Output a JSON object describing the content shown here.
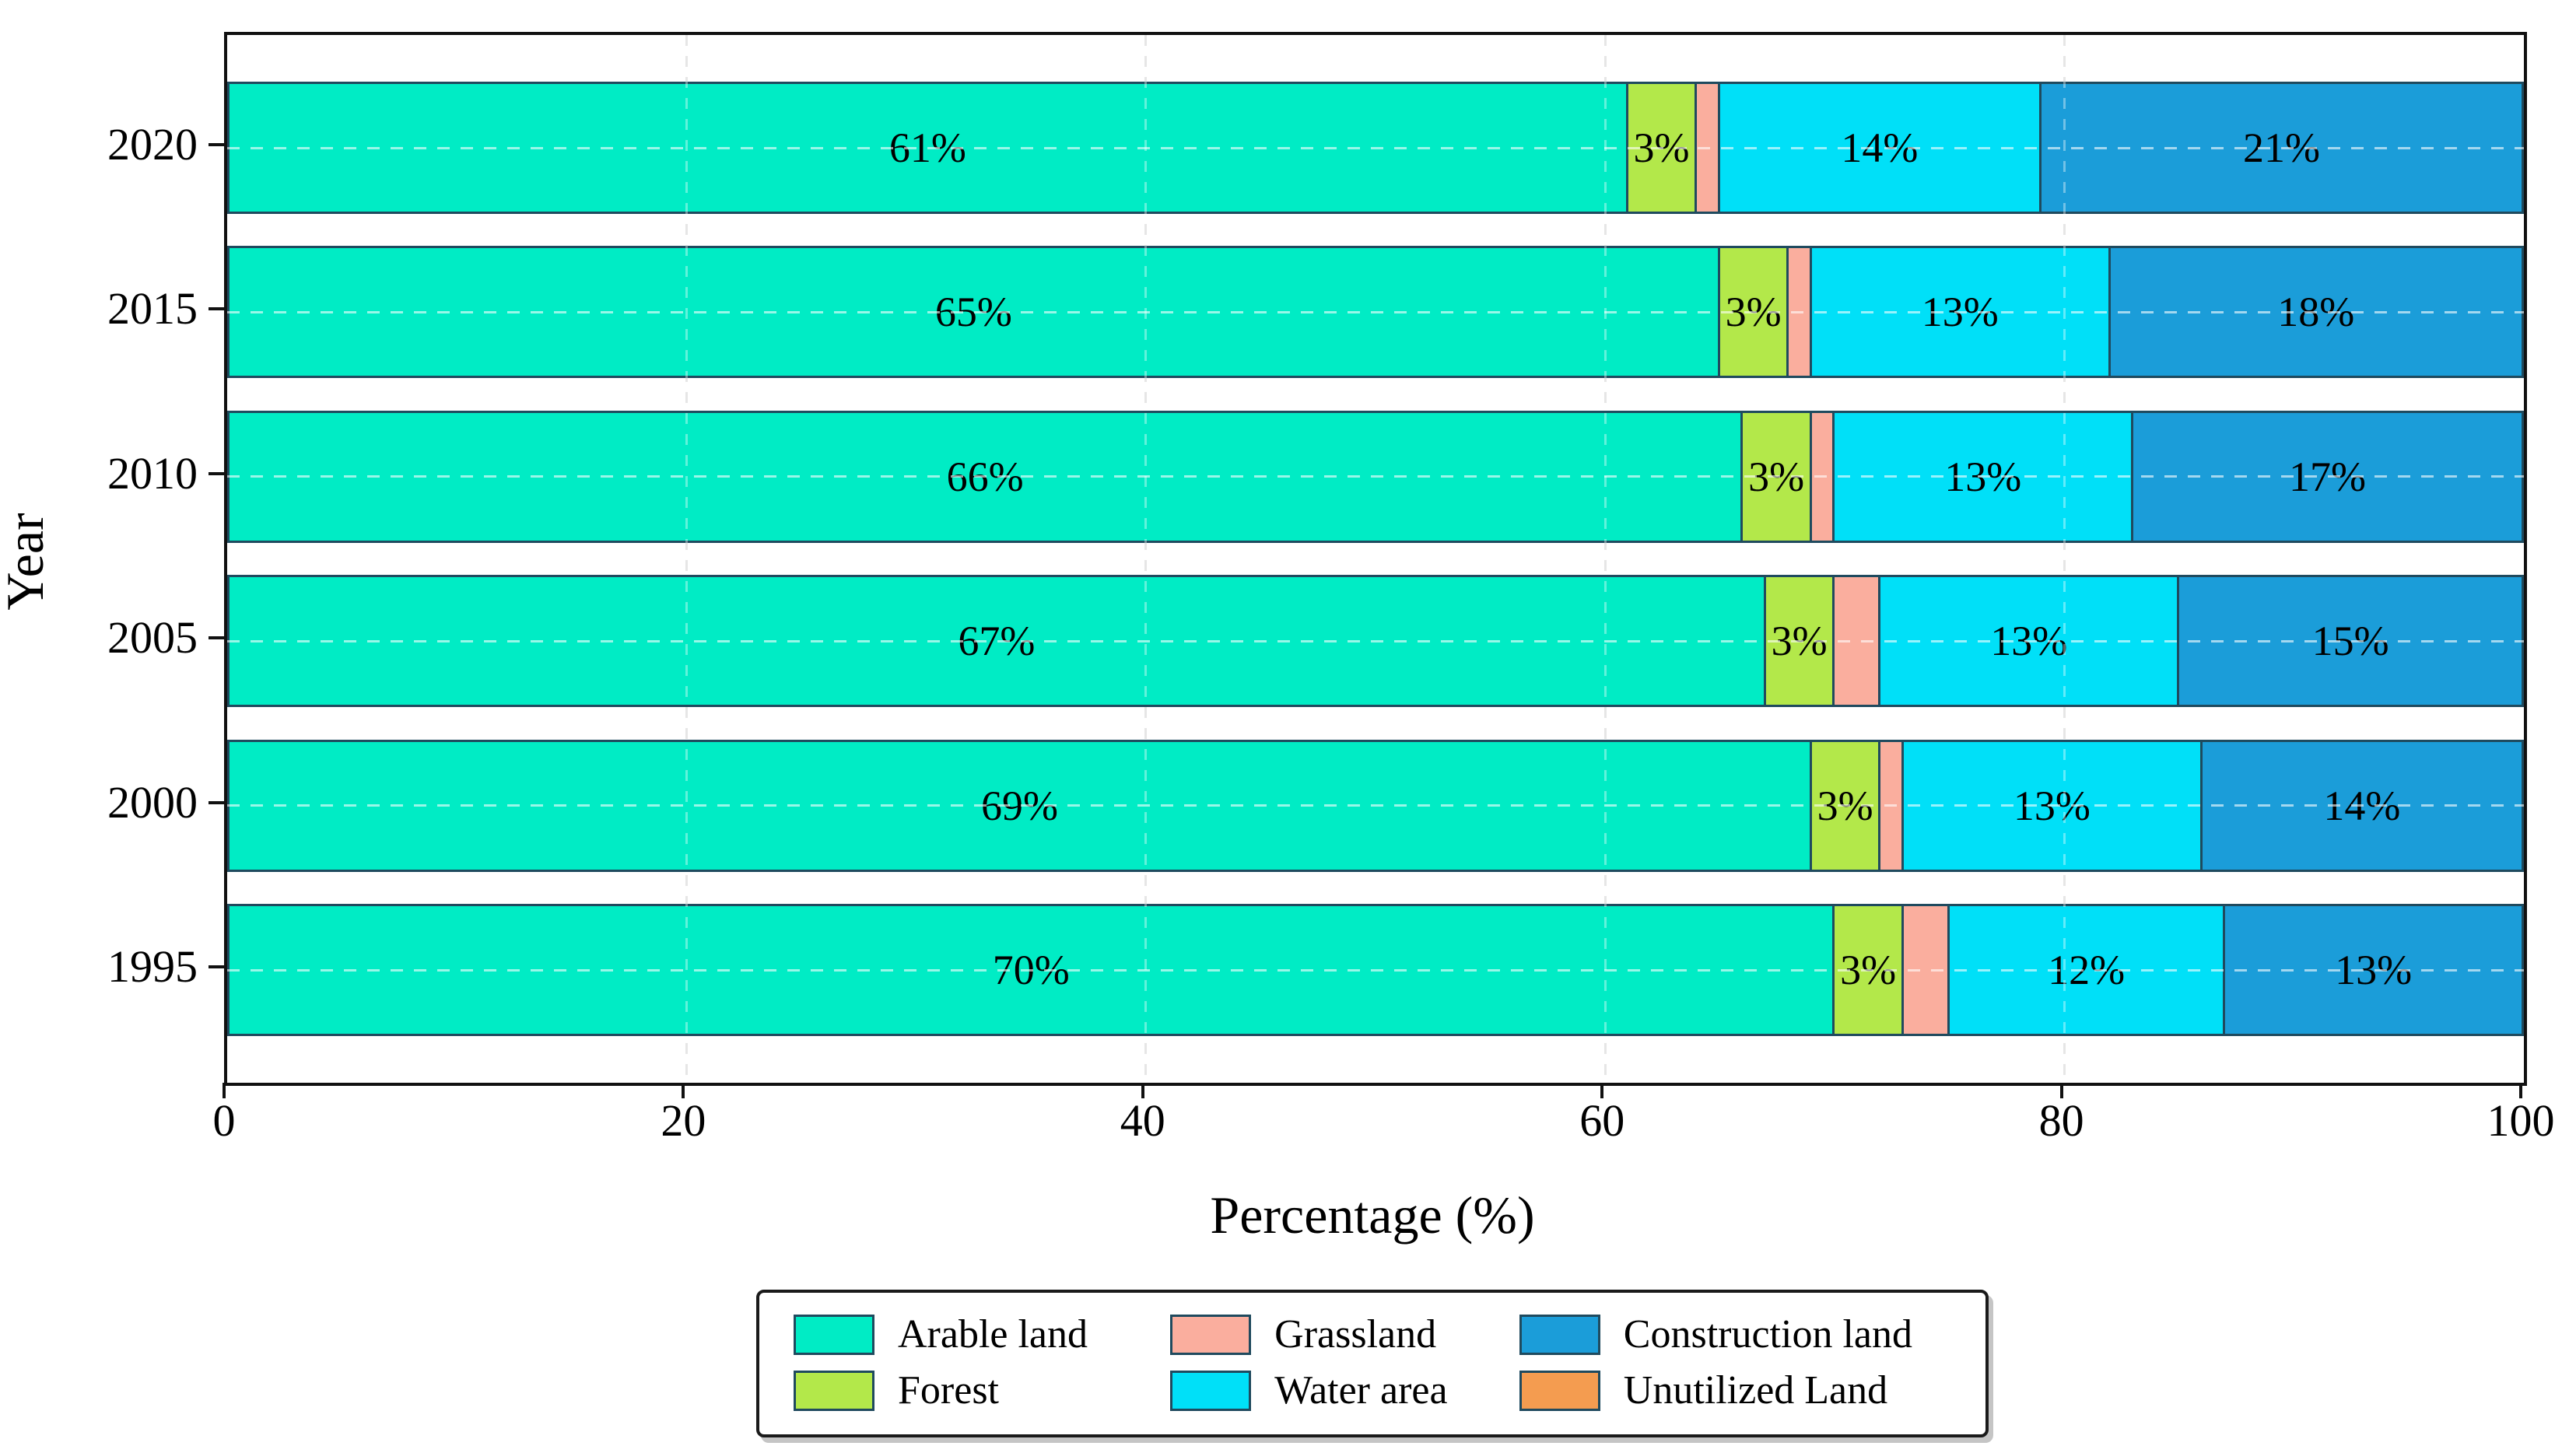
{
  "chart_data": {
    "type": "bar",
    "orientation": "horizontal",
    "stacked": true,
    "title": "",
    "xlabel": "Percentage (%)",
    "ylabel": "Year",
    "xlim": [
      0,
      100
    ],
    "xticks": [
      "0",
      "20",
      "40",
      "60",
      "80",
      "100"
    ],
    "xtick_values": [
      0,
      20,
      40,
      60,
      80,
      100
    ],
    "gridlines": {
      "vertical_at": [
        20,
        40,
        60,
        80
      ],
      "style": "dashed",
      "horizontal_at_category_centers": true
    },
    "categories": [
      "2020",
      "2015",
      "2010",
      "2005",
      "2000",
      "1995"
    ],
    "series": [
      {
        "name": "Arable land",
        "color": "#00ECC5",
        "values": [
          61,
          65,
          66,
          67,
          69,
          70
        ],
        "labels": [
          "61%",
          "65%",
          "66%",
          "67%",
          "69%",
          "70%"
        ]
      },
      {
        "name": "Forest",
        "color": "#B3E84A",
        "values": [
          3,
          3,
          3,
          3,
          3,
          3
        ],
        "labels": [
          "3%",
          "3%",
          "3%",
          "3%",
          "3%",
          "3%"
        ]
      },
      {
        "name": "Grassland",
        "color": "#FAAE9E",
        "values": [
          1,
          1,
          1,
          2,
          1,
          2
        ],
        "labels": [
          "",
          "",
          "",
          "",
          "",
          ""
        ]
      },
      {
        "name": "Water area",
        "color": "#00E0F8",
        "values": [
          14,
          13,
          13,
          13,
          13,
          12
        ],
        "labels": [
          "14%",
          "13%",
          "13%",
          "13%",
          "13%",
          "12%"
        ]
      },
      {
        "name": "Construction land",
        "color": "#1B9DD9",
        "values": [
          21,
          18,
          17,
          15,
          14,
          13
        ],
        "labels": [
          "21%",
          "18%",
          "17%",
          "15%",
          "14%",
          "13%"
        ]
      },
      {
        "name": "Unutilized Land",
        "color": "#F49C50",
        "values": [
          0,
          0,
          0,
          0,
          0,
          0
        ],
        "labels": [
          "",
          "",
          "",
          "",
          "",
          ""
        ]
      }
    ],
    "legend": {
      "position": "bottom",
      "display_order": [
        "Arable land",
        "Forest",
        "Grassland",
        "Water area",
        "Construction land",
        "Unutilized Land"
      ]
    }
  }
}
